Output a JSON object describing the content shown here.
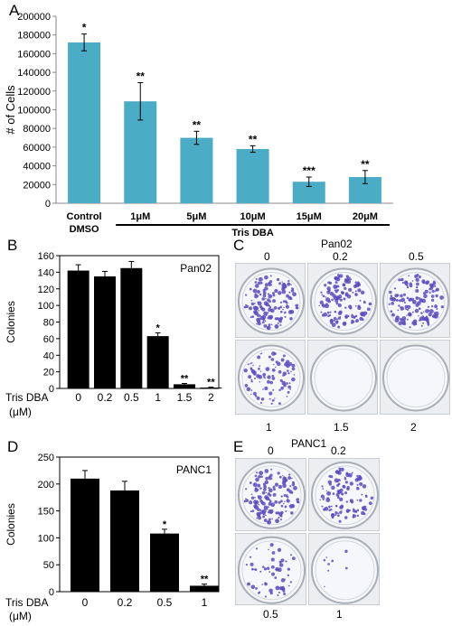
{
  "panels": {
    "A": "A",
    "B": "B",
    "C": "C",
    "D": "D",
    "E": "E"
  },
  "chart_data": [
    {
      "panel": "A",
      "type": "bar",
      "ylabel": "# of Cells",
      "categories": [
        "Control DMSO",
        "1μM",
        "5μM",
        "10μM",
        "15μM",
        "20μM"
      ],
      "category_lines": [
        [
          "Control",
          "DMSO"
        ],
        [
          "1μM"
        ],
        [
          "5μM"
        ],
        [
          "10μM"
        ],
        [
          "15μM"
        ],
        [
          "20μM"
        ]
      ],
      "values": [
        172000,
        109000,
        70000,
        58000,
        23000,
        28000
      ],
      "errors": [
        9000,
        20000,
        7000,
        3500,
        5000,
        7000
      ],
      "significance": [
        "*",
        "**",
        "**",
        "**",
        "***",
        "**"
      ],
      "ylim": [
        0,
        200000
      ],
      "yticks": [
        "0",
        "20000",
        "40000",
        "60000",
        "80000",
        "100000",
        "120000",
        "140000",
        "160000",
        "180000",
        "200000"
      ],
      "group_label": "Tris DBA",
      "bar_color": "#4bacc6",
      "grid": false
    },
    {
      "panel": "B",
      "type": "bar",
      "ylabel": "Colonies",
      "inset_label": "Pan02",
      "xlabel": "Tris DBA",
      "xunit": "(μM)",
      "categories": [
        "0",
        "0.2",
        "0.5",
        "1",
        "1.5",
        "2"
      ],
      "values": [
        142,
        135,
        145,
        63,
        5,
        1
      ],
      "errors": [
        7,
        6,
        8,
        4,
        1,
        0.5
      ],
      "significance": [
        "",
        "",
        "",
        "*",
        "**",
        "**"
      ],
      "ylim": [
        0,
        160
      ],
      "yticks": [
        "0",
        "20",
        "40",
        "60",
        "80",
        "100",
        "120",
        "140",
        "160"
      ],
      "bar_color": "#000000",
      "grid": false
    },
    {
      "panel": "D",
      "type": "bar",
      "ylabel": "Colonies",
      "inset_label": "PANC1",
      "xlabel": "Tris DBA",
      "xunit": "(μM)",
      "categories": [
        "0",
        "0.2",
        "0.5",
        "1"
      ],
      "values": [
        210,
        188,
        108,
        11
      ],
      "errors": [
        15,
        17,
        8,
        3
      ],
      "significance": [
        "",
        "",
        "*",
        "**"
      ],
      "ylim": [
        0,
        250
      ],
      "yticks": [
        "0",
        "50",
        "100",
        "150",
        "200",
        "250"
      ],
      "bar_color": "#000000",
      "grid": false
    }
  ],
  "panelC": {
    "title": "Pan02",
    "top_labels": [
      "0",
      "0.2",
      "0.5"
    ],
    "bottom_labels": [
      "1",
      "1.5",
      "2"
    ],
    "dish_colony_density": [
      0.9,
      0.85,
      0.9,
      0.55,
      0.0,
      0.0
    ],
    "colony_color": "#5a4bc0"
  },
  "panelE": {
    "title": "PANC1",
    "top_labels": [
      "0",
      "0.2"
    ],
    "bottom_labels": [
      "0.5",
      "1"
    ],
    "dish_colony_density": [
      0.9,
      0.7,
      0.35,
      0.05
    ],
    "colony_color": "#5a4bc0"
  }
}
